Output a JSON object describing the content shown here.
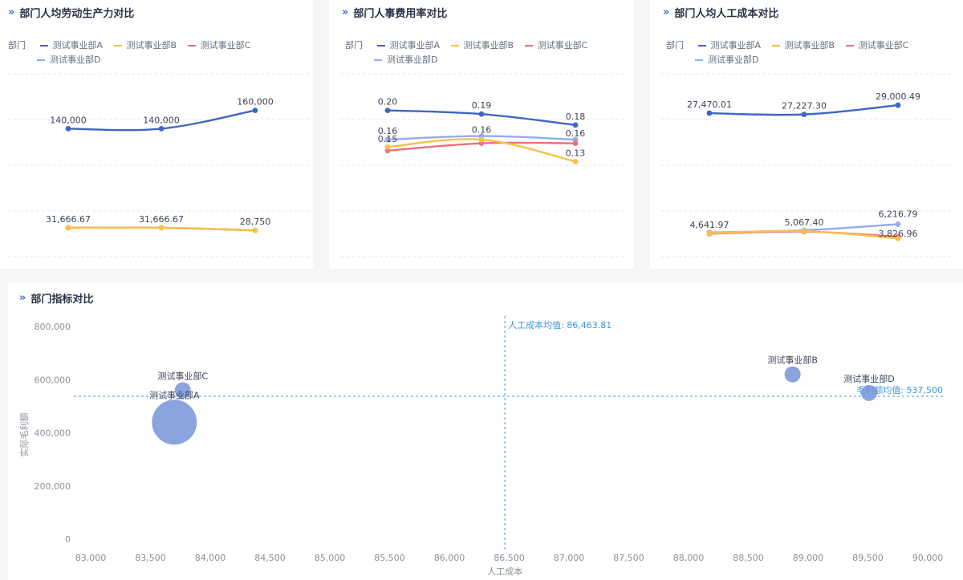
{
  "colors": {
    "A": "#3d67c4",
    "B": "#f7c14a",
    "C": "#ee6f7c",
    "D": "#98a9ee",
    "ref": "#3d97d6",
    "grid": "#e6e8ed",
    "bubble": "#6d8fd4"
  },
  "legend_label": "部门",
  "chart_data": [
    {
      "type": "line",
      "title": "部门人均劳动生产力对比",
      "legend_placement": "top-left",
      "grid": true,
      "ylim": [
        0,
        200000
      ],
      "x": [
        "p1",
        "p2",
        "p3"
      ],
      "series": [
        {
          "name": "测试事业部A",
          "key": "A",
          "values": [
            140000,
            140000,
            160000
          ],
          "labels": [
            "140,000",
            "140,000",
            "160,000"
          ]
        },
        {
          "name": "测试事业部B",
          "key": "B",
          "values": [
            31666.67,
            31666.67,
            28750
          ],
          "labels": [
            "",
            "",
            ""
          ]
        },
        {
          "name": "测试事业部C",
          "key": "C",
          "values": [
            31666.67,
            31666.67,
            28750
          ],
          "labels": [
            "",
            "",
            ""
          ]
        },
        {
          "name": "测试事业部D",
          "key": "D",
          "values": [
            31666.67,
            31666.67,
            28750
          ],
          "labels": [
            "31,666.67",
            "31,666.67",
            "28,750"
          ]
        }
      ]
    },
    {
      "type": "line",
      "title": "部门人事费用率对比",
      "legend_placement": "top-left",
      "grid": true,
      "ylim": [
        0,
        0.25
      ],
      "x": [
        "p1",
        "p2",
        "p3"
      ],
      "series": [
        {
          "name": "测试事业部A",
          "key": "A",
          "values": [
            0.2,
            0.195,
            0.18
          ],
          "labels": [
            "0.20",
            "0.19",
            "0.18"
          ]
        },
        {
          "name": "测试事业部B",
          "key": "B",
          "values": [
            0.15,
            0.16,
            0.13
          ],
          "labels": [
            "0.15",
            "",
            "0.13"
          ]
        },
        {
          "name": "测试事业部C",
          "key": "C",
          "values": [
            0.145,
            0.155,
            0.155
          ],
          "labels": [
            "",
            "",
            ""
          ]
        },
        {
          "name": "测试事业部D",
          "key": "D",
          "values": [
            0.16,
            0.165,
            0.16
          ],
          "labels": [
            "0.16",
            "0.16",
            "0.16"
          ]
        }
      ]
    },
    {
      "type": "line",
      "title": "部门人均人工成本对比",
      "legend_placement": "top-left",
      "grid": true,
      "ylim": [
        0,
        35000
      ],
      "x": [
        "p1",
        "p2",
        "p3"
      ],
      "series": [
        {
          "name": "测试事业部A",
          "key": "A",
          "values": [
            27470.01,
            27227.3,
            29000.49
          ],
          "labels": [
            "27,470.01",
            "27,227.30",
            "29,000.49"
          ]
        },
        {
          "name": "测试事业部B",
          "key": "B",
          "values": [
            4500,
            4900,
            3500
          ],
          "labels": [
            "",
            "",
            ""
          ]
        },
        {
          "name": "测试事业部C",
          "key": "C",
          "values": [
            4400,
            4800,
            3826.96
          ],
          "labels": [
            "",
            "",
            "3,826.96"
          ]
        },
        {
          "name": "测试事业部D",
          "key": "D",
          "values": [
            4641.97,
            5067.4,
            6216.79
          ],
          "labels": [
            "4,641.97",
            "5,067.40",
            "6,216.79"
          ]
        }
      ]
    },
    {
      "type": "scatter",
      "title": "部门指标对比",
      "xlabel": "人工成本",
      "ylabel": "实际毛利额",
      "xlim": [
        83000,
        90000
      ],
      "ylim": [
        0,
        800000
      ],
      "x_ticks": [
        "83,000",
        "83,500",
        "84,000",
        "84,500",
        "85,000",
        "85,500",
        "86,000",
        "86,500",
        "87,000",
        "87,500",
        "88,000",
        "88,500",
        "89,000",
        "89,500",
        "90,000"
      ],
      "y_ticks": [
        "0",
        "200,000",
        "400,000",
        "600,000",
        "800,000"
      ],
      "points": [
        {
          "name": "测试事业部A",
          "x": 83700,
          "y": 440000,
          "size": 28
        },
        {
          "name": "测试事业部C",
          "x": 83770,
          "y": 560000,
          "size": 10
        },
        {
          "name": "测试事业部B",
          "x": 88870,
          "y": 620000,
          "size": 10
        },
        {
          "name": "测试事业部D",
          "x": 89510,
          "y": 550000,
          "size": 10
        }
      ],
      "ref_lines": {
        "x": {
          "value": 86463.81,
          "label": "人工成本均值: 86,463.81"
        },
        "y": {
          "value": 537500,
          "label": "毛利额均值: 537,500"
        }
      }
    }
  ]
}
